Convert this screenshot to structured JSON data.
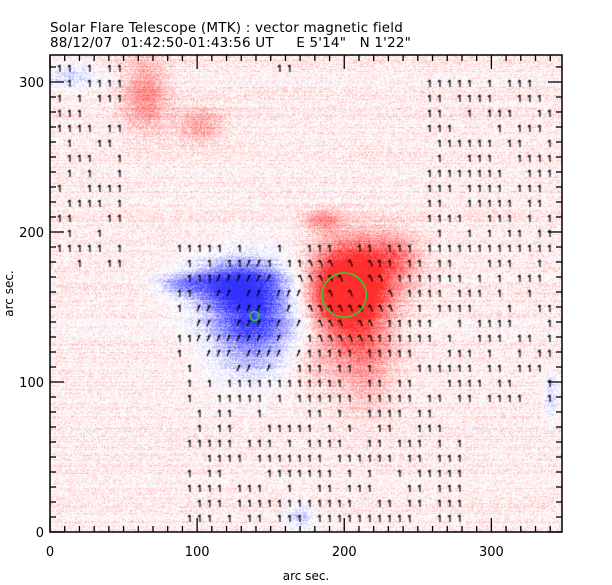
{
  "chart_data": {
    "type": "heatmap",
    "title": "Solar Flare Telescope (MTK) : vector magnetic field",
    "subtitle": "88/12/07  01:42:50-01:43:56 UT     E 5'14\"   N 1'22\"",
    "xlabel": "arc sec.",
    "ylabel": "arc sec.",
    "xlim": [
      0,
      348
    ],
    "ylim": [
      0,
      318
    ],
    "xticks": [
      0,
      100,
      200,
      300
    ],
    "yticks": [
      0,
      100,
      200,
      300
    ],
    "x_minor_step": 10,
    "y_minor_step": 10,
    "colors": {
      "positive_polarity": "#ff3030",
      "negative_polarity": "#3344ff",
      "contour": "#33cc33",
      "vectors": "#000000",
      "frame": "#000000"
    },
    "features": [
      {
        "name": "negative-polarity-region",
        "center": [
          137,
          142
        ],
        "polarity": "negative"
      },
      {
        "name": "positive-polarity-region",
        "center": [
          199,
          158
        ],
        "polarity": "positive"
      }
    ],
    "contours": [
      {
        "name": "large-contour",
        "center": [
          200,
          158
        ],
        "radius": 15
      },
      {
        "name": "small-contour",
        "center": [
          139,
          144
        ],
        "radius": 3
      }
    ]
  }
}
